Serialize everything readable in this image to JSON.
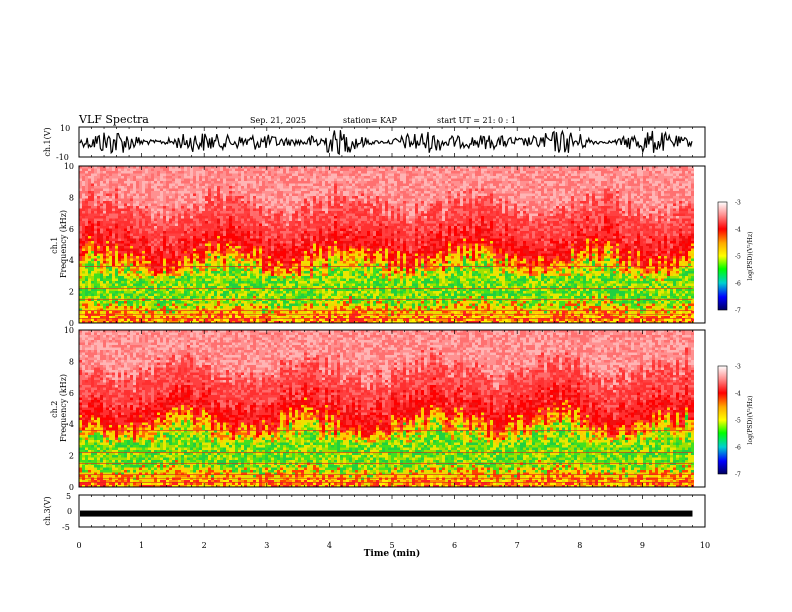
{
  "header": {
    "title": "VLF Spectra",
    "date": "Sep. 21, 2025",
    "station": "station= KAP",
    "start": "start  UT =  21: 0  : 1"
  },
  "chart_data": [
    {
      "type": "line",
      "name": "ch1-waveform",
      "ylabel": "ch.1(V)",
      "ylim": [
        -10,
        10
      ],
      "yticks": [
        "10",
        "-10"
      ],
      "xlim": [
        0,
        10
      ],
      "description_values": "dense black noise waveform spanning roughly -8..8 V from 0 to ~9.8 min"
    },
    {
      "type": "heatmap",
      "name": "ch1-spectrogram",
      "ylabel": "ch.1\nFrequency  (kHz)",
      "ylim": [
        0,
        10
      ],
      "yticks": [
        "0",
        "2",
        "4",
        "6",
        "8",
        "10"
      ],
      "xlim": [
        0,
        10
      ],
      "data_end_min": 9.8,
      "colorbar": {
        "label": "log(PSD)(V²/Hz)",
        "range": [
          -7,
          -3
        ],
        "ticks": [
          "-3",
          "-4",
          "-5",
          "-6",
          "-7"
        ]
      }
    },
    {
      "type": "heatmap",
      "name": "ch2-spectrogram",
      "ylabel": "ch.2\nFrequency  (kHz)",
      "ylim": [
        0,
        10
      ],
      "yticks": [
        "0",
        "2",
        "4",
        "6",
        "8",
        "10"
      ],
      "xlim": [
        0,
        10
      ],
      "data_end_min": 9.8,
      "colorbar": {
        "label": "log(PSD)(V²/Hz)",
        "range": [
          -7,
          -3
        ],
        "ticks": [
          "-3",
          "-4",
          "-5",
          "-6",
          "-7"
        ]
      }
    },
    {
      "type": "line",
      "name": "ch3-waveform",
      "ylabel": "ch.3(V)",
      "ylim": [
        -5,
        5
      ],
      "yticks": [
        "5",
        "0",
        "-5"
      ],
      "xlim": [
        0,
        10
      ],
      "level_v": -0.8
    }
  ],
  "xaxis": {
    "label": "Time  (min)",
    "ticks": [
      "0",
      "1",
      "2",
      "3",
      "4",
      "5",
      "6",
      "7",
      "8",
      "9",
      "10"
    ]
  },
  "colors": {
    "axis": "#000000",
    "background": "#ffffff"
  }
}
